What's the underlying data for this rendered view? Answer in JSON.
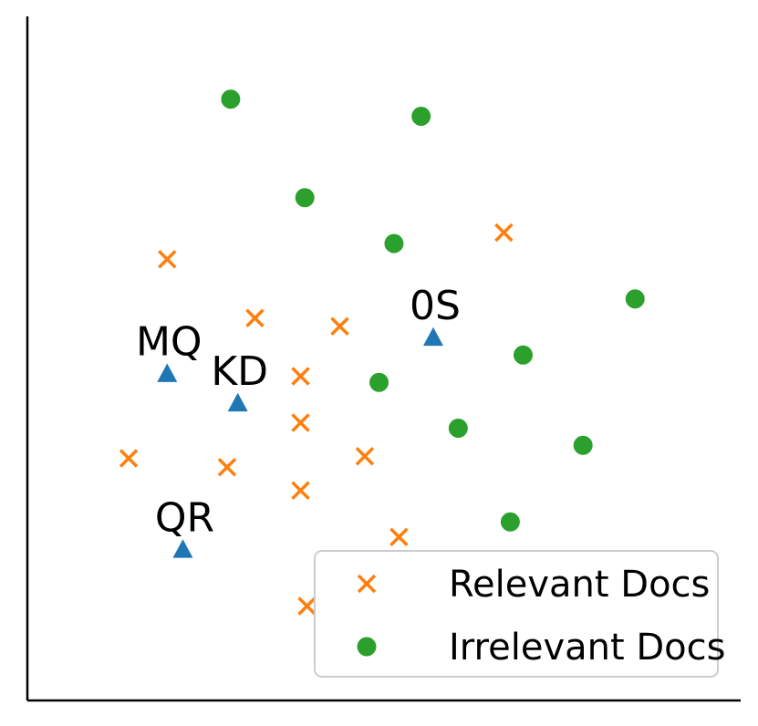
{
  "chart_data": {
    "type": "scatter",
    "title": "",
    "xlabel": "",
    "ylabel": "",
    "xlim": [
      0,
      100
    ],
    "ylim": [
      0,
      100
    ],
    "grid": false,
    "legend_position": "bottom-right",
    "series": [
      {
        "name": "Relevant Docs",
        "marker": "x",
        "color": "#ff7f0e",
        "points": [
          {
            "x": 19.6,
            "y": 64.5
          },
          {
            "x": 66.8,
            "y": 68.4
          },
          {
            "x": 31.9,
            "y": 55.9
          },
          {
            "x": 43.8,
            "y": 54.7
          },
          {
            "x": 38.3,
            "y": 47.4
          },
          {
            "x": 38.3,
            "y": 40.6
          },
          {
            "x": 14.2,
            "y": 35.4
          },
          {
            "x": 28.0,
            "y": 34.1
          },
          {
            "x": 47.3,
            "y": 35.7
          },
          {
            "x": 38.3,
            "y": 30.7
          },
          {
            "x": 52.1,
            "y": 23.9
          },
          {
            "x": 39.2,
            "y": 13.8
          }
        ]
      },
      {
        "name": "Irrelevant Docs",
        "marker": "o",
        "color": "#2ca02c",
        "points": [
          {
            "x": 28.5,
            "y": 87.9
          },
          {
            "x": 55.2,
            "y": 85.4
          },
          {
            "x": 38.9,
            "y": 73.5
          },
          {
            "x": 51.4,
            "y": 66.8
          },
          {
            "x": 85.2,
            "y": 58.7
          },
          {
            "x": 69.5,
            "y": 50.5
          },
          {
            "x": 49.3,
            "y": 46.5
          },
          {
            "x": 60.4,
            "y": 39.8
          },
          {
            "x": 77.9,
            "y": 37.3
          },
          {
            "x": 67.7,
            "y": 26.1
          }
        ]
      },
      {
        "name": "",
        "marker": "^",
        "color": "#1f77b4",
        "points": [
          {
            "x": 19.6,
            "y": 47.8,
            "label": "MQ"
          },
          {
            "x": 29.5,
            "y": 43.5,
            "label": "KD"
          },
          {
            "x": 56.9,
            "y": 53.1,
            "label": "0S"
          },
          {
            "x": 21.8,
            "y": 22.1,
            "label": "QR"
          }
        ]
      }
    ],
    "legend": [
      {
        "label": "Relevant Docs",
        "marker": "x",
        "color": "#ff7f0e"
      },
      {
        "label": "Irrelevant Docs",
        "marker": "o",
        "color": "#2ca02c"
      }
    ]
  }
}
